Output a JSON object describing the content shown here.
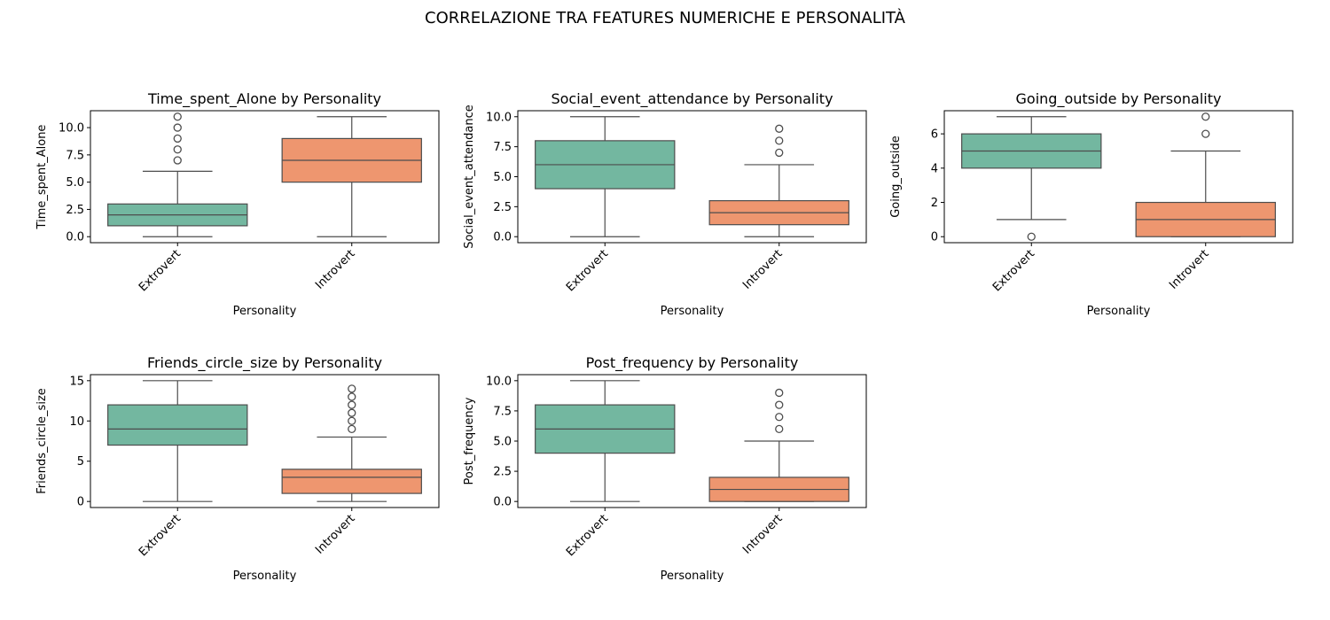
{
  "figure": {
    "suptitle": "CORRELAZIONE TRA FEATURES NUMERICHE E PERSONALITÀ"
  },
  "colors": {
    "Extrovert": "#73b7a0",
    "Introvert": "#ee966f",
    "line": "#4d4d4d",
    "axes": "#000000"
  },
  "chart_data": [
    {
      "type": "box",
      "title": "Time_spent_Alone by Personality",
      "xlabel": "Personality",
      "ylabel": "Time_spent_Alone",
      "categories": [
        "Extrovert",
        "Introvert"
      ],
      "ylim": [
        -0.55,
        11.55
      ],
      "yticks": [
        0,
        2.5,
        5,
        7.5,
        10
      ],
      "ytick_labels": [
        "0.0",
        "2.5",
        "5.0",
        "7.5",
        "10.0"
      ],
      "boxes": [
        {
          "category": "Extrovert",
          "whislo": 0,
          "q1": 1,
          "median": 2,
          "q3": 3,
          "whishi": 6,
          "fliers": [
            7,
            8,
            9,
            10,
            11
          ]
        },
        {
          "category": "Introvert",
          "whislo": 0,
          "q1": 5,
          "median": 7,
          "q3": 9,
          "whishi": 11,
          "fliers": []
        }
      ]
    },
    {
      "type": "box",
      "title": "Social_event_attendance by Personality",
      "xlabel": "Personality",
      "ylabel": "Social_event_attendance",
      "categories": [
        "Extrovert",
        "Introvert"
      ],
      "ylim": [
        -0.5,
        10.5
      ],
      "yticks": [
        0,
        2.5,
        5,
        7.5,
        10
      ],
      "ytick_labels": [
        "0.0",
        "2.5",
        "5.0",
        "7.5",
        "10.0"
      ],
      "boxes": [
        {
          "category": "Extrovert",
          "whislo": 0,
          "q1": 4,
          "median": 6,
          "q3": 8,
          "whishi": 10,
          "fliers": []
        },
        {
          "category": "Introvert",
          "whislo": 0,
          "q1": 1,
          "median": 2,
          "q3": 3,
          "whishi": 6,
          "fliers": [
            7,
            8,
            9
          ]
        }
      ]
    },
    {
      "type": "box",
      "title": "Going_outside by Personality",
      "xlabel": "Personality",
      "ylabel": "Going_outside",
      "categories": [
        "Extrovert",
        "Introvert"
      ],
      "ylim": [
        -0.35,
        7.35
      ],
      "yticks": [
        0,
        2,
        4,
        6
      ],
      "ytick_labels": [
        "0",
        "2",
        "4",
        "6"
      ],
      "boxes": [
        {
          "category": "Extrovert",
          "whislo": 1,
          "q1": 4,
          "median": 5,
          "q3": 6,
          "whishi": 7,
          "fliers": [
            0
          ]
        },
        {
          "category": "Introvert",
          "whislo": 0,
          "q1": 0,
          "median": 1,
          "q3": 2,
          "whishi": 5,
          "fliers": [
            6,
            7
          ]
        }
      ]
    },
    {
      "type": "box",
      "title": "Friends_circle_size by Personality",
      "xlabel": "Personality",
      "ylabel": "Friends_circle_size",
      "categories": [
        "Extrovert",
        "Introvert"
      ],
      "ylim": [
        -0.75,
        15.75
      ],
      "yticks": [
        0,
        5,
        10,
        15
      ],
      "ytick_labels": [
        "0",
        "5",
        "10",
        "15"
      ],
      "boxes": [
        {
          "category": "Extrovert",
          "whislo": 0,
          "q1": 7,
          "median": 9,
          "q3": 12,
          "whishi": 15,
          "fliers": []
        },
        {
          "category": "Introvert",
          "whislo": 0,
          "q1": 1,
          "median": 3,
          "q3": 4,
          "whishi": 8,
          "fliers": [
            9,
            10,
            11,
            12,
            13,
            14
          ]
        }
      ]
    },
    {
      "type": "box",
      "title": "Post_frequency by Personality",
      "xlabel": "Personality",
      "ylabel": "Post_frequency",
      "categories": [
        "Extrovert",
        "Introvert"
      ],
      "ylim": [
        -0.5,
        10.5
      ],
      "yticks": [
        0,
        2.5,
        5,
        7.5,
        10
      ],
      "ytick_labels": [
        "0.0",
        "2.5",
        "5.0",
        "7.5",
        "10.0"
      ],
      "boxes": [
        {
          "category": "Extrovert",
          "whislo": 0,
          "q1": 4,
          "median": 6,
          "q3": 8,
          "whishi": 10,
          "fliers": []
        },
        {
          "category": "Introvert",
          "whislo": 0,
          "q1": 0,
          "median": 1,
          "q3": 2,
          "whishi": 5,
          "fliers": [
            6,
            7,
            8,
            9
          ]
        }
      ]
    }
  ]
}
